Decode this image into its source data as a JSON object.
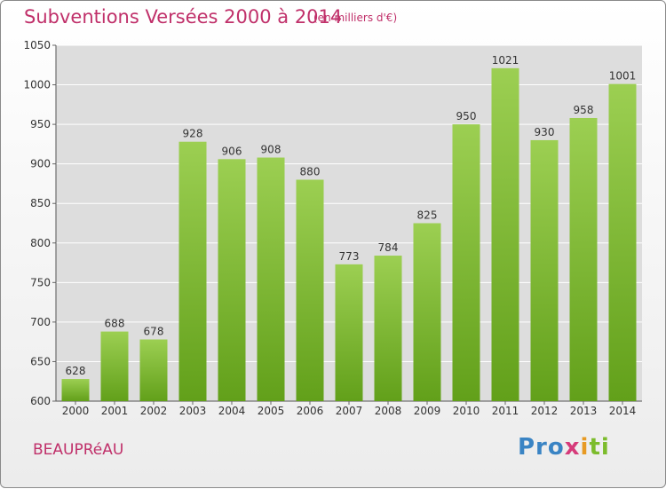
{
  "title": "Subventions Versées 2000 à 2014",
  "subtitle": "(en milliers d'€)",
  "commune": "BEAUPRéAU",
  "brand": {
    "part1": "Pro",
    "part2": "x",
    "part3": "i",
    "part4": "ti"
  },
  "colors": {
    "title": "#c0306a",
    "bar_top": "#9ccf52",
    "bar_bottom": "#62a01a",
    "plot_bg": "#dddddd",
    "grid": "#ffffff"
  },
  "chart_data": {
    "type": "bar",
    "categories": [
      "2000",
      "2001",
      "2002",
      "2003",
      "2004",
      "2005",
      "2006",
      "2007",
      "2008",
      "2009",
      "2010",
      "2011",
      "2012",
      "2013",
      "2014"
    ],
    "values": [
      628,
      688,
      678,
      928,
      906,
      908,
      880,
      773,
      784,
      825,
      950,
      1021,
      930,
      958,
      1001
    ],
    "title": "Subventions Versées 2000 à 2014",
    "ylim": [
      600,
      1050
    ],
    "yticks": [
      600,
      650,
      700,
      750,
      800,
      850,
      900,
      950,
      1000,
      1050
    ],
    "grid": true,
    "legend": "none"
  }
}
